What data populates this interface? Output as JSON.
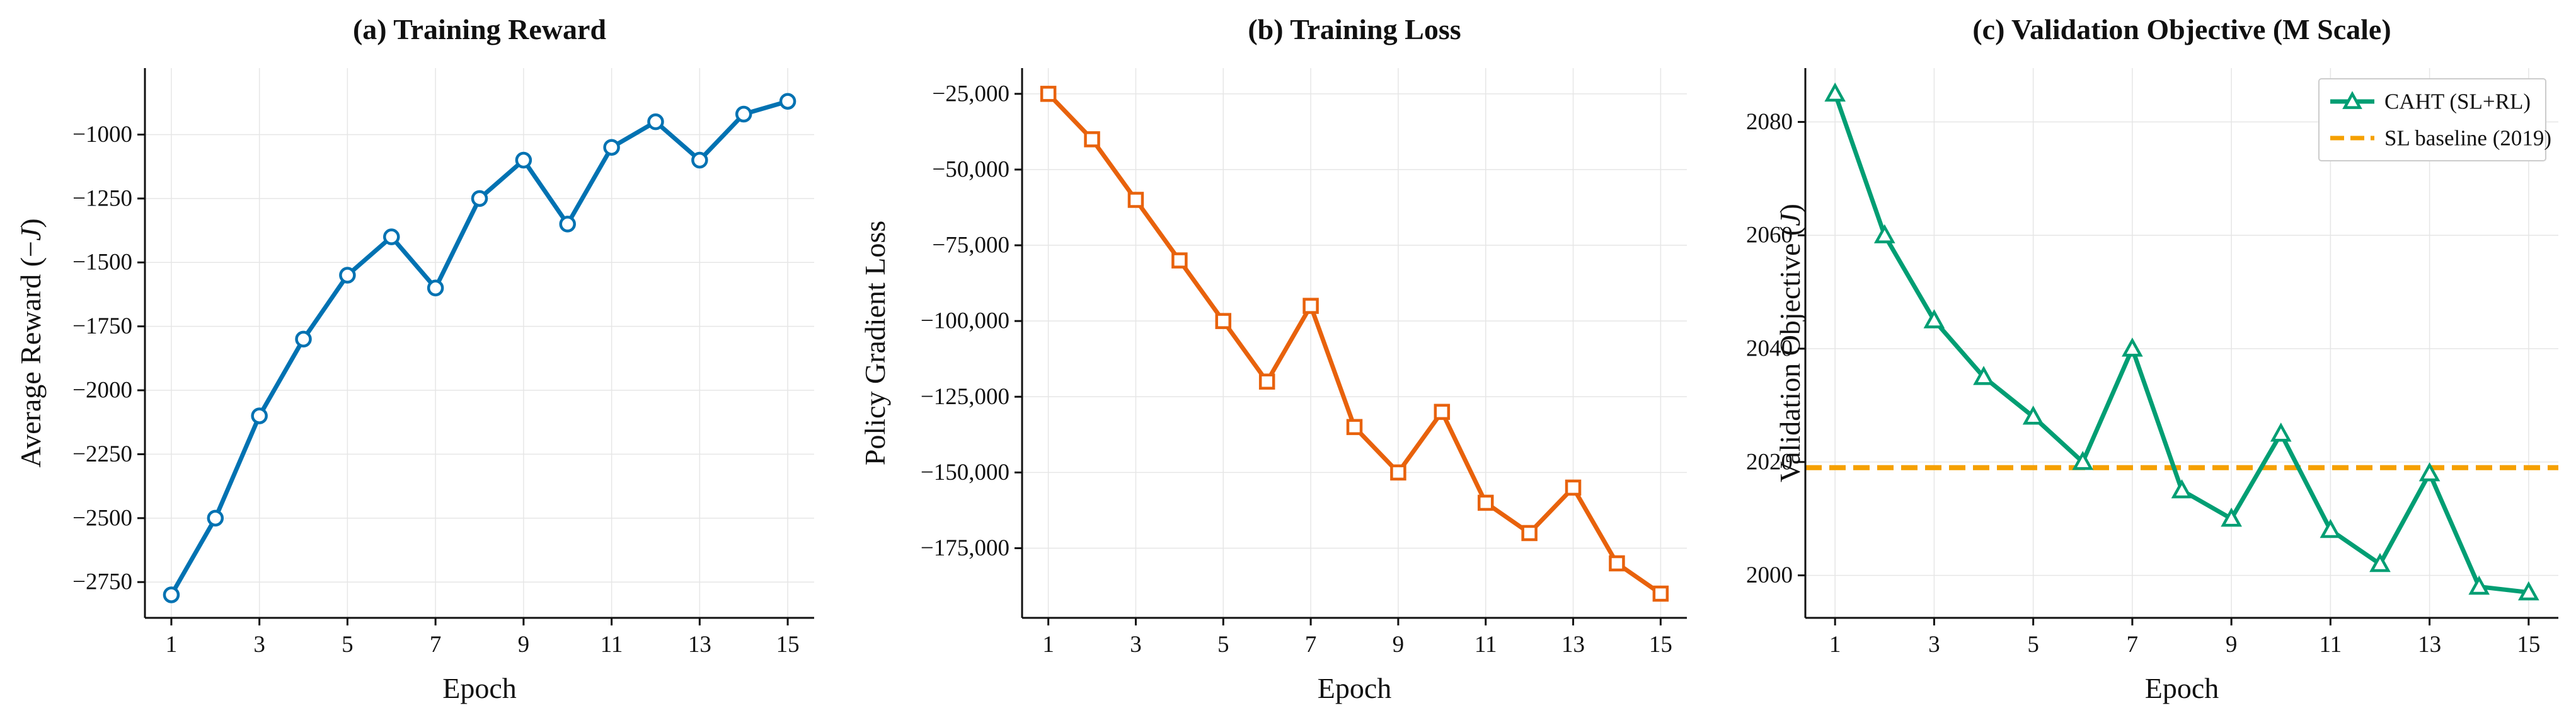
{
  "chart_data": [
    {
      "type": "line",
      "title": "(a) Training Reward",
      "xlabel": "Epoch",
      "ylabel": "Average Reward (−J)",
      "ylabel_parts": {
        "prefix": "Average Reward (−",
        "italic": "J",
        "suffix": ")"
      },
      "x": [
        1,
        2,
        3,
        4,
        5,
        6,
        7,
        8,
        9,
        10,
        11,
        12,
        13,
        14,
        15
      ],
      "xticks": [
        1,
        3,
        5,
        7,
        9,
        11,
        13,
        15
      ],
      "yticks": [
        -2750,
        -2500,
        -2250,
        -2000,
        -1750,
        -1500,
        -1250,
        -1000
      ],
      "ytick_labels": [
        "−2750",
        "−2500",
        "−2250",
        "−2000",
        "−1750",
        "−1500",
        "−1250",
        "−1000"
      ],
      "xlim": [
        0.4,
        15.6
      ],
      "ylim": [
        -2890,
        -740
      ],
      "grid": true,
      "series": [
        {
          "color": "#0072b2",
          "marker": "circle",
          "values": [
            -2800,
            -2500,
            -2100,
            -1800,
            -1550,
            -1400,
            -1600,
            -1250,
            -1100,
            -1350,
            -1050,
            -950,
            -1100,
            -920,
            -870
          ]
        }
      ]
    },
    {
      "type": "line",
      "title": "(b) Training Loss",
      "xlabel": "Epoch",
      "ylabel": "Policy Gradient Loss",
      "x": [
        1,
        2,
        3,
        4,
        5,
        6,
        7,
        8,
        9,
        10,
        11,
        12,
        13,
        14,
        15
      ],
      "xticks": [
        1,
        3,
        5,
        7,
        9,
        11,
        13,
        15
      ],
      "yticks": [
        -175000,
        -150000,
        -125000,
        -100000,
        -75000,
        -50000,
        -25000
      ],
      "ytick_labels": [
        "−175,000",
        "−150,000",
        "−125,000",
        "−100,000",
        "−75,000",
        "−50,000",
        "−25,000"
      ],
      "xlim": [
        0.4,
        15.6
      ],
      "ylim": [
        -198000,
        -16500
      ],
      "grid": true,
      "series": [
        {
          "color": "#e8620c",
          "marker": "square",
          "values": [
            -25000,
            -40000,
            -60000,
            -80000,
            -100000,
            -120000,
            -95000,
            -135000,
            -150000,
            -130000,
            -160000,
            -170000,
            -155000,
            -180000,
            -190000
          ]
        }
      ]
    },
    {
      "type": "line",
      "title": "(c) Validation Objective (M Scale)",
      "xlabel": "Epoch",
      "ylabel": "Validation Objective (J)",
      "ylabel_parts": {
        "prefix": "Validation Objective (",
        "italic": "J",
        "suffix": ")"
      },
      "x": [
        1,
        2,
        3,
        4,
        5,
        6,
        7,
        8,
        9,
        10,
        11,
        12,
        13,
        14,
        15
      ],
      "xticks": [
        1,
        3,
        5,
        7,
        9,
        11,
        13,
        15
      ],
      "yticks": [
        2000,
        2020,
        2040,
        2060,
        2080
      ],
      "ytick_labels": [
        "2000",
        "2020",
        "2040",
        "2060",
        "2080"
      ],
      "xlim": [
        0.4,
        15.6
      ],
      "ylim": [
        1992.5,
        2089.5
      ],
      "grid": true,
      "legend_position": "top-right",
      "series": [
        {
          "name": "CAHT (SL+RL)",
          "color": "#009e73",
          "marker": "triangle",
          "values": [
            2085,
            2060,
            2045,
            2035,
            2028,
            2020,
            2040,
            2015,
            2010,
            2025,
            2008,
            2002,
            2018,
            1998,
            1997
          ]
        }
      ],
      "reference_lines": [
        {
          "name": "SL baseline (2019)",
          "color": "#f5a000",
          "style": "dashed",
          "y": 2019
        }
      ]
    }
  ]
}
